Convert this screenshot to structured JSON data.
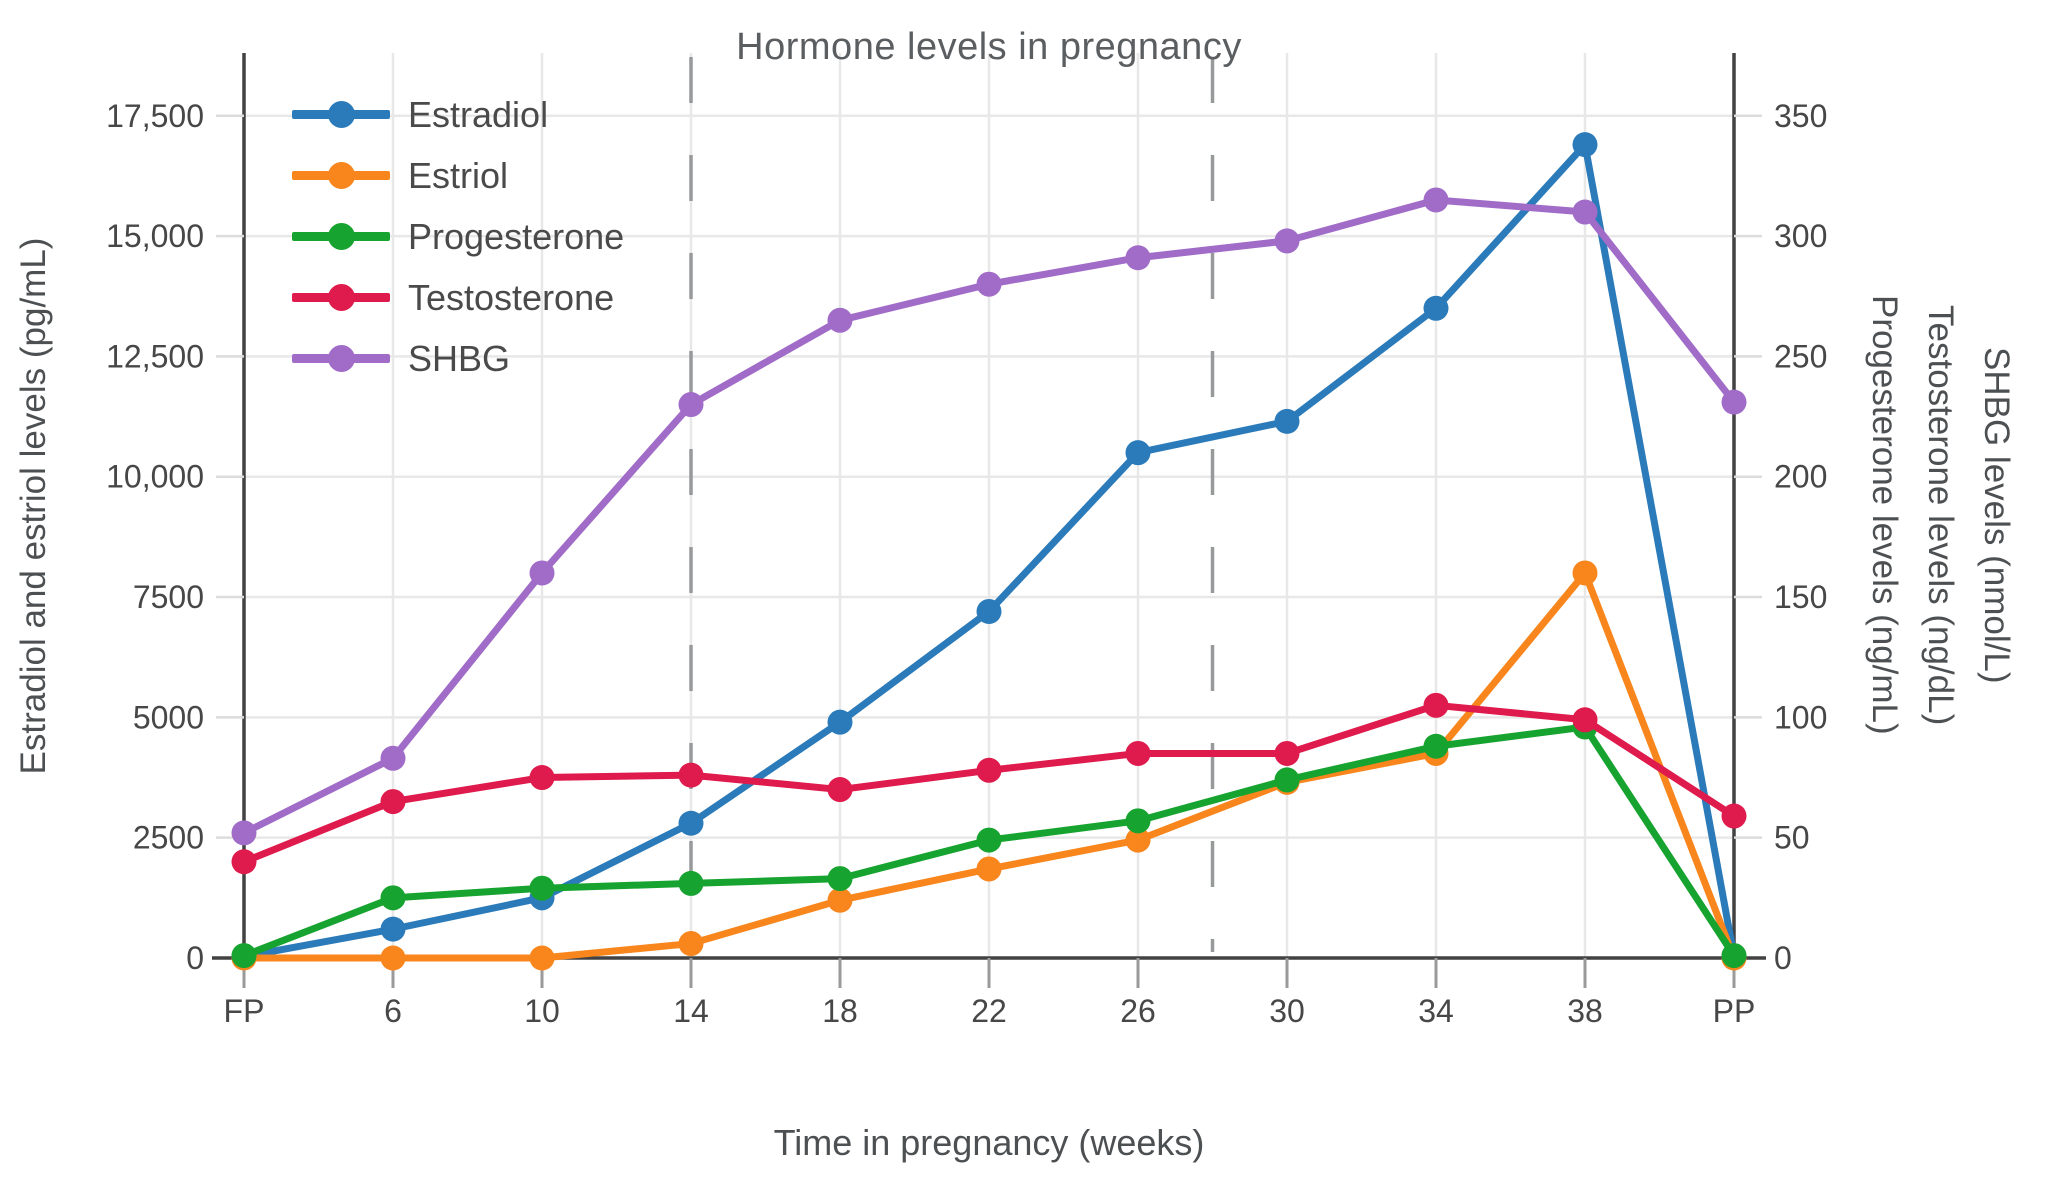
{
  "title": "Hormone levels in pregnancy",
  "x_axis": {
    "title": "Time in pregnancy (weeks)",
    "tick_labels": [
      "FP",
      "6",
      "10",
      "14",
      "18",
      "22",
      "26",
      "30",
      "34",
      "38",
      "PP"
    ]
  },
  "y_axis_left": {
    "title": "Estradiol and estriol levels (pg/mL)",
    "tick_labels": [
      "0",
      "2500",
      "5000",
      "7500",
      "10,000",
      "12,500",
      "15,000",
      "17,500"
    ],
    "tick_values": [
      0,
      2500,
      5000,
      7500,
      10000,
      12500,
      15000,
      17500
    ],
    "range": [
      0,
      18800
    ]
  },
  "y_axis_right": {
    "titles": [
      "Progesterone levels (ng/mL)",
      "Testosterone levels (ng/dL)",
      "SHBG levels (nmol/L)"
    ],
    "tick_labels": [
      "0",
      "50",
      "100",
      "150",
      "200",
      "250",
      "300",
      "350"
    ],
    "tick_values": [
      0,
      50,
      100,
      150,
      200,
      250,
      300,
      350
    ],
    "range": [
      0,
      376
    ],
    "left_units_per_right_unit": 50
  },
  "colors": {
    "grid": "#e8e8e8",
    "axis_line": "#424242",
    "side_tick": "#dcdcdc",
    "bottom_tick": "#9a9a9a",
    "dashed_divider": "#97999b",
    "tick_text": "#474747"
  },
  "chart_data": {
    "type": "line",
    "title": "Hormone levels in pregnancy",
    "xlabel": "Time in pregnancy (weeks)",
    "categories": [
      "FP",
      "6",
      "10",
      "14",
      "18",
      "22",
      "26",
      "30",
      "34",
      "38",
      "PP"
    ],
    "legend_position": "top-left-inside",
    "grid": true,
    "dashed_vertical_dividers_at_weeks": [
      14,
      28
    ],
    "series": [
      {
        "name": "Estradiol",
        "axis": "left",
        "unit": "pg/mL",
        "color": "#2b7bba",
        "values": [
          30,
          600,
          1250,
          2800,
          4900,
          7200,
          10500,
          11150,
          13500,
          16900,
          40
        ]
      },
      {
        "name": "Estriol",
        "axis": "left",
        "unit": "pg/mL",
        "color": "#f8861d",
        "values": [
          0,
          0,
          0,
          300,
          1200,
          1850,
          2450,
          3650,
          4250,
          8000,
          0
        ]
      },
      {
        "name": "Progesterone",
        "axis": "right",
        "unit": "ng/mL",
        "color": "#17a32f",
        "values": [
          1,
          25,
          29,
          31,
          33,
          49,
          57,
          74,
          88,
          96,
          1
        ]
      },
      {
        "name": "Testosterone",
        "axis": "right",
        "unit": "ng/dL",
        "color": "#df1a4c",
        "values": [
          40,
          65,
          75,
          76,
          70,
          78,
          85,
          85,
          105,
          99,
          59
        ]
      },
      {
        "name": "SHBG",
        "axis": "right",
        "unit": "nmol/L",
        "color": "#a06cc8",
        "values": [
          52,
          83,
          160,
          230,
          265,
          280,
          291,
          298,
          315,
          310,
          231
        ]
      }
    ]
  }
}
